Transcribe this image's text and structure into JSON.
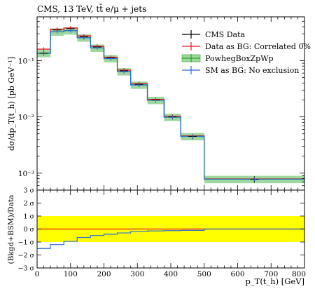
{
  "chart_data": {
    "type": "histogram",
    "title": "CMS, 13 TeV, tt̄ e/μ + jets",
    "xlabel": "p_T(t_h) [GeV]",
    "ylabel_top": "dσ/dp_T(t_h) [pb GeV⁻¹]",
    "ylabel_bottom": "(Bkgd+BSM)/Data",
    "xlim": [
      0,
      800
    ],
    "ylim_top": [
      0.0005,
      0.6
    ],
    "yscale_top": "log",
    "ylim_bottom": [
      -3,
      3
    ],
    "bin_edges": [
      0,
      40,
      80,
      120,
      160,
      200,
      240,
      280,
      330,
      380,
      430,
      500,
      800
    ],
    "x_ticks": [
      0,
      100,
      200,
      300,
      400,
      500,
      600,
      700,
      800
    ],
    "x_tick_labels": [
      "0",
      "100",
      "200",
      "300",
      "400",
      "500",
      "600",
      "700",
      "800"
    ],
    "y_top_ticks": [
      0.1,
      0.01,
      0.001
    ],
    "y_top_tick_labels": [
      "10⁻¹",
      "10⁻²",
      "10⁻³"
    ],
    "y_bottom_ticks": [
      3,
      2,
      1,
      0,
      -1,
      -2,
      -3
    ],
    "y_bottom_tick_labels": [
      "3 σ",
      "2 σ",
      "1 σ",
      "0 σ",
      "−1 σ",
      "−2 σ",
      "−3 σ"
    ],
    "legend_position": "top-right",
    "series": [
      {
        "name": "CMS Data",
        "color": "#000000",
        "values": [
          0.135,
          0.35,
          0.37,
          0.265,
          0.175,
          0.112,
          0.066,
          0.038,
          0.02,
          0.01,
          0.0045,
          0.00078
        ],
        "errors": [
          0.012,
          0.03,
          0.03,
          0.022,
          0.015,
          0.01,
          0.006,
          0.004,
          0.002,
          0.001,
          0.0005,
          0.0001
        ]
      },
      {
        "name": "Data as BG: Correlated 0%",
        "color": "#e8191e",
        "values": [
          0.16,
          0.36,
          0.38,
          0.275,
          0.18,
          0.115,
          0.068,
          0.039,
          0.0205,
          0.0102,
          0.0046,
          0.00079
        ]
      },
      {
        "name": "PowhegBoxZpWp",
        "color": "#2ca02c",
        "band": "#9fd89f",
        "values": [
          0.135,
          0.325,
          0.34,
          0.255,
          0.168,
          0.109,
          0.064,
          0.037,
          0.0198,
          0.0099,
          0.0045,
          0.00078
        ],
        "band_rel": 0.15
      },
      {
        "name": "SM as BG: No exclusion",
        "color": "#2a6fd6",
        "values": [
          0.135,
          0.325,
          0.34,
          0.255,
          0.168,
          0.109,
          0.064,
          0.037,
          0.0198,
          0.0099,
          0.0045,
          0.00078
        ]
      }
    ],
    "ratio": {
      "band_color": "#ffff00",
      "band_range": [
        -1,
        1
      ],
      "red_line": [
        0,
        0,
        0,
        0,
        0,
        0,
        0,
        0,
        0,
        0,
        0,
        0
      ],
      "blue_line": [
        -1.5,
        -1.2,
        -0.95,
        -0.65,
        -0.5,
        -0.4,
        -0.3,
        -0.2,
        -0.15,
        -0.12,
        -0.1,
        0.0
      ]
    }
  }
}
